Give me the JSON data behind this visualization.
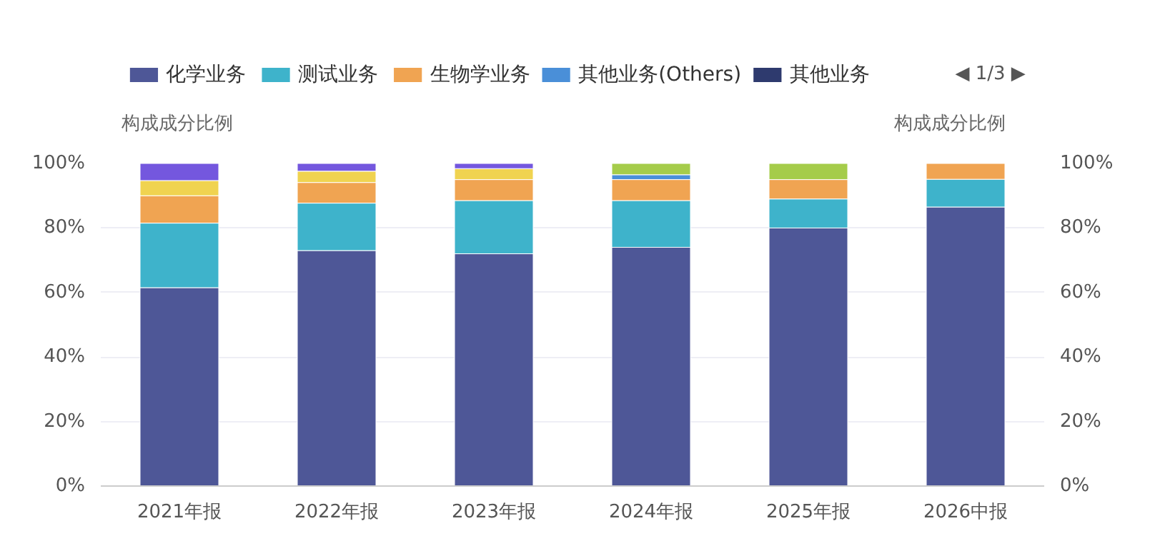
{
  "chart_data": {
    "type": "bar",
    "stacked": true,
    "categories": [
      "2021年报",
      "2022年报",
      "2023年报",
      "2024年报",
      "2025年报",
      "2026中报"
    ],
    "series": [
      {
        "name": "化学业务",
        "color": "#4e5797",
        "values": [
          61.5,
          73,
          72,
          74,
          80,
          86.5
        ]
      },
      {
        "name": "测试业务",
        "color": "#3eb3cb",
        "values": [
          20,
          14.7,
          16.5,
          14.5,
          9,
          8.6
        ]
      },
      {
        "name": "生物学业务",
        "color": "#f0a452",
        "values": [
          8.5,
          6.4,
          6.5,
          6.5,
          6,
          4.9
        ]
      },
      {
        "name": "其他业务(Others)",
        "color": "#4a8fd8",
        "values": [
          null,
          null,
          null,
          1.5,
          null,
          null
        ]
      },
      {
        "name": "其他业务",
        "color": "#2e3a6e",
        "values": [
          null,
          null,
          null,
          null,
          null,
          null
        ]
      },
      {
        "color": "#f0d350",
        "values": [
          4.7,
          3.5,
          3.4,
          null,
          null,
          null
        ]
      },
      {
        "color": "#7457de",
        "values": [
          5.3,
          2.4,
          1.6,
          null,
          null,
          null
        ]
      },
      {
        "color": "#a5cc4a",
        "values": [
          null,
          null,
          null,
          3.5,
          5,
          null
        ]
      }
    ],
    "ylim": [
      0,
      100
    ],
    "yticks": [
      {
        "value": 0,
        "label": "0%"
      },
      {
        "value": 20,
        "label": "20%"
      },
      {
        "value": 40,
        "label": "40%"
      },
      {
        "value": 60,
        "label": "60%"
      },
      {
        "value": 80,
        "label": "80%"
      },
      {
        "value": 100,
        "label": "100%"
      }
    ],
    "y2lim": [
      0,
      100
    ],
    "y2ticks": [
      {
        "value": 0,
        "label": "0%"
      },
      {
        "value": 20,
        "label": "20%"
      },
      {
        "value": 40,
        "label": "40%"
      },
      {
        "value": 60,
        "label": "60%"
      },
      {
        "value": 80,
        "label": "80%"
      },
      {
        "value": 100,
        "label": "100%"
      }
    ],
    "ylabel": "构成成分比例",
    "y2label": "构成成分比例",
    "annotations": [
      "◀ 1/3 ▶"
    ],
    "grid": "y",
    "legend": "top"
  }
}
